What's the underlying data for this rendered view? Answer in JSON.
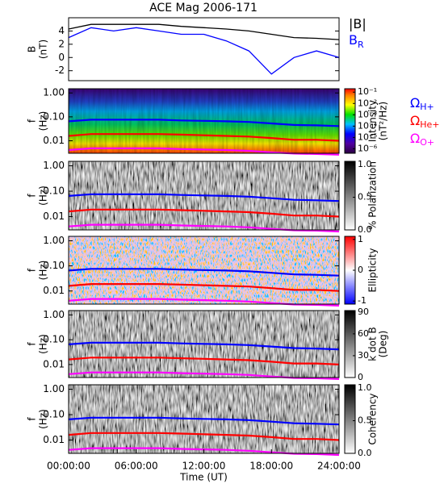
{
  "chart_data": [
    {
      "type": "line",
      "title": "ACE Mag 2006-171",
      "ylabel": [
        "B",
        "(nT)"
      ],
      "x": [
        "00:00:00",
        "02:00:00",
        "04:00:00",
        "06:00:00",
        "08:00:00",
        "10:00:00",
        "12:00:00",
        "14:00:00",
        "16:00:00",
        "18:00:00",
        "20:00:00",
        "22:00:00",
        "24:00:00"
      ],
      "xlim": [
        "00:00:00",
        "24:00:00"
      ],
      "ylim": [
        -3.5,
        6
      ],
      "yticks": [
        -2,
        0,
        2,
        4
      ],
      "series": [
        {
          "name": "|B|",
          "color": "#000000",
          "values": [
            4.3,
            5.0,
            5.0,
            5.0,
            5.0,
            4.7,
            4.5,
            4.3,
            4.0,
            3.5,
            3.0,
            2.9,
            2.7
          ]
        },
        {
          "name": "B",
          "subscript": "R",
          "color": "#0000ff",
          "values": [
            3.0,
            4.5,
            4.0,
            4.5,
            4.0,
            3.5,
            3.5,
            2.5,
            1.0,
            -2.5,
            0.0,
            1.0,
            0.0
          ]
        }
      ]
    },
    {
      "type": "spectrogram",
      "ylabel": [
        "f",
        "(Hz)"
      ],
      "yscale": "log",
      "ylim": [
        0.003,
        1.5
      ],
      "yticks": [
        {
          "value": 1,
          "label": "1.00"
        },
        {
          "value": 0.1,
          "label": "0.10"
        },
        {
          "value": 0.01,
          "label": "0.01"
        }
      ],
      "colormap": "rainbow",
      "clabel": [
        "Intensity",
        "(nT²/Hz)"
      ],
      "cscale": "log",
      "clim": [
        4e-07,
        0.2
      ],
      "cticks": [
        {
          "value": 0.1,
          "label": "10⁻¹"
        },
        {
          "value": 0.01,
          "label": "10⁻²"
        },
        {
          "value": 0.001,
          "label": "10⁻³"
        },
        {
          "value": 0.0001,
          "label": "10⁻⁴"
        },
        {
          "value": 1e-05,
          "label": "10⁻⁵"
        },
        {
          "value": 1e-06,
          "label": "10⁻⁶"
        }
      ],
      "x": [
        "00:00:00",
        "02:00:00",
        "04:00:00",
        "06:00:00",
        "08:00:00",
        "10:00:00",
        "12:00:00",
        "14:00:00",
        "16:00:00",
        "18:00:00",
        "20:00:00",
        "22:00:00",
        "24:00:00"
      ],
      "xlim": [
        "00:00:00",
        "24:00:00"
      ],
      "series": [
        {
          "name": "Ω",
          "subscript": "H+",
          "color": "#0000ff",
          "values": [
            0.065,
            0.076,
            0.076,
            0.076,
            0.076,
            0.071,
            0.068,
            0.065,
            0.061,
            0.053,
            0.046,
            0.044,
            0.041
          ]
        },
        {
          "name": "Ω",
          "subscript": "He+",
          "color": "#ff0000",
          "values": [
            0.016,
            0.019,
            0.019,
            0.019,
            0.019,
            0.018,
            0.017,
            0.016,
            0.015,
            0.013,
            0.011,
            0.011,
            0.01
          ]
        },
        {
          "name": "Ω",
          "subscript": "O+",
          "color": "#ff00ff",
          "values": [
            0.0041,
            0.0048,
            0.0048,
            0.0048,
            0.0048,
            0.0045,
            0.0043,
            0.0041,
            0.0038,
            0.0033,
            0.0029,
            0.0028,
            0.0026
          ]
        }
      ]
    },
    {
      "type": "spectrogram",
      "ylabel": [
        "f",
        "(Hz)"
      ],
      "yscale": "log",
      "ylim": [
        0.003,
        1.5
      ],
      "yticks": [
        {
          "value": 1,
          "label": "1.00"
        },
        {
          "value": 0.1,
          "label": "0.10"
        },
        {
          "value": 0.01,
          "label": "0.01"
        }
      ],
      "colormap": "gray",
      "clabel": [
        "% Polarization"
      ],
      "clim": [
        0,
        1.05
      ],
      "cticks": [
        {
          "value": 0,
          "label": "0.0"
        },
        {
          "value": 0.5,
          "label": "0.5"
        },
        {
          "value": 1,
          "label": "1.0"
        }
      ]
    },
    {
      "type": "spectrogram",
      "ylabel": [
        "f",
        "(Hz)"
      ],
      "yscale": "log",
      "ylim": [
        0.003,
        1.5
      ],
      "yticks": [
        {
          "value": 1,
          "label": "1.00"
        },
        {
          "value": 0.1,
          "label": "0.10"
        },
        {
          "value": 0.01,
          "label": "0.01"
        }
      ],
      "colormap": "bwr",
      "clabel": [
        "Ellipticity"
      ],
      "clim": [
        -1.1,
        1.1
      ],
      "cticks": [
        -1,
        0,
        1
      ]
    },
    {
      "type": "spectrogram",
      "ylabel": [
        "f",
        "(Hz)"
      ],
      "yscale": "log",
      "ylim": [
        0.003,
        1.5
      ],
      "yticks": [
        {
          "value": 1,
          "label": "1.00"
        },
        {
          "value": 0.1,
          "label": "0.10"
        },
        {
          "value": 0.01,
          "label": "0.01"
        }
      ],
      "colormap": "gray",
      "clabel": [
        "k dot B",
        "(Deg)"
      ],
      "clim": [
        0,
        92
      ],
      "cticks": [
        0,
        30,
        60,
        90
      ]
    },
    {
      "type": "spectrogram",
      "ylabel": [
        "f",
        "(Hz)"
      ],
      "yscale": "log",
      "ylim": [
        0.003,
        1.5
      ],
      "yticks": [
        {
          "value": 1,
          "label": "1.00"
        },
        {
          "value": 0.1,
          "label": "0.10"
        },
        {
          "value": 0.01,
          "label": "0.01"
        }
      ],
      "colormap": "gray",
      "clabel": [
        "Coherency"
      ],
      "clim": [
        0,
        1.05
      ],
      "cticks": [
        {
          "value": 0,
          "label": "0.0"
        },
        {
          "value": 0.5,
          "label": "0.5"
        },
        {
          "value": 1,
          "label": "1.0"
        }
      ],
      "xlim": [
        "00:00:00",
        "24:00:00"
      ],
      "xticks": [
        "00:00:00",
        "06:00:00",
        "12:00:00",
        "18:00:00",
        "24:00:00"
      ],
      "xlabel": "Time (UT)"
    }
  ]
}
